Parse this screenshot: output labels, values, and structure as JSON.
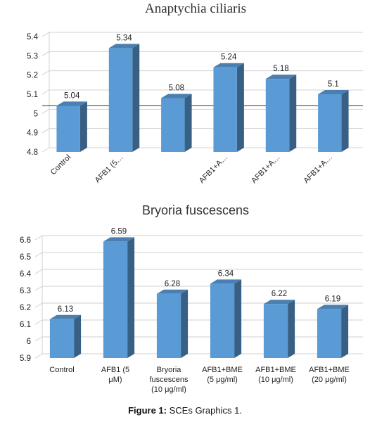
{
  "chart_data": [
    {
      "type": "bar",
      "title": "Anaptychia ciliaris",
      "categories": [
        "Control",
        "AFB1 (5…",
        "",
        "AFB1+A…",
        "AFB1+A…",
        "AFB1+A…"
      ],
      "values": [
        5.04,
        5.34,
        5.08,
        5.24,
        5.18,
        5.1
      ],
      "data_labels": [
        "5.04",
        "5.34",
        "5.08",
        "5.24",
        "5.18",
        "5.1"
      ],
      "yticks": [
        "4.8",
        "4.9",
        "5",
        "5.1",
        "5.2",
        "5.3",
        "5.4"
      ],
      "ylim": [
        4.8,
        5.4
      ],
      "bar_color": "#5b9bd5",
      "grid": true,
      "reference_line": 5.04
    },
    {
      "type": "bar",
      "title": "Bryoria fuscescens",
      "categories": [
        "Control",
        "AFB1 (5 μM)",
        "Bryoria fuscescens (10 μg/ml)",
        "AFB1+BME (5 μg/ml)",
        "AFB1+BME (10 μg/ml)",
        "AFB1+BME (20 μg/ml)"
      ],
      "category_lines": [
        [
          "Control"
        ],
        [
          "AFB1 (5",
          "μM)"
        ],
        [
          "Bryoria",
          "fuscescens",
          "(10 μg/ml)"
        ],
        [
          "AFB1+BME",
          "(5 μg/ml)"
        ],
        [
          "AFB1+BME",
          "(10 μg/ml)"
        ],
        [
          "AFB1+BME",
          "(20 μg/ml)"
        ]
      ],
      "values": [
        6.13,
        6.59,
        6.28,
        6.34,
        6.22,
        6.19
      ],
      "data_labels": [
        "6.13",
        "6.59",
        "6.28",
        "6.34",
        "6.22",
        "6.19"
      ],
      "yticks": [
        "5.9",
        "6",
        "6.1",
        "6.2",
        "6.3",
        "6.4",
        "6.5",
        "6.6"
      ],
      "ylim": [
        5.9,
        6.6
      ],
      "bar_color": "#5b9bd5",
      "grid": true
    }
  ],
  "caption": {
    "label": "Figure 1:",
    "text": " SCEs Graphics 1."
  }
}
